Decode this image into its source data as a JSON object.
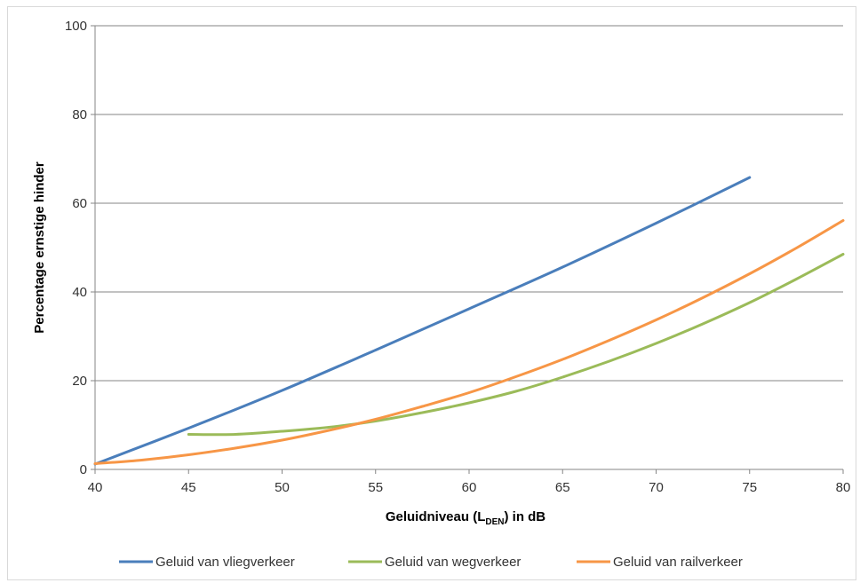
{
  "chart_data": {
    "type": "line",
    "title": "",
    "xlabel": {
      "main": "Geluidniveau  (L",
      "sub": "DEN",
      "tail": ") in dB"
    },
    "ylabel": "Percentage ernstige hinder",
    "xlim": [
      40,
      80
    ],
    "ylim": [
      0,
      100
    ],
    "xticks": [
      40,
      45,
      50,
      55,
      60,
      65,
      70,
      75,
      80
    ],
    "yticks": [
      0,
      20,
      40,
      60,
      80,
      100
    ],
    "grid": "horizontal",
    "legend_position": "bottom",
    "series": [
      {
        "name": "Geluid van vliegverkeer",
        "color": "#4a7ebb",
        "x": [
          40,
          45,
          50,
          55,
          60,
          65,
          70,
          75
        ],
        "y": [
          1.2,
          9.3,
          17.8,
          26.9,
          36.2,
          45.6,
          55.5,
          65.8
        ]
      },
      {
        "name": "Geluid van wegverkeer",
        "color": "#9bbb59",
        "x": [
          45,
          47.5,
          50,
          52.5,
          55,
          57.5,
          60,
          62.5,
          65,
          67.5,
          70,
          72.5,
          75,
          77.5,
          80
        ],
        "y": [
          7.9,
          7.9,
          8.6,
          9.5,
          10.9,
          12.8,
          15.0,
          17.6,
          20.8,
          24.4,
          28.4,
          32.8,
          37.6,
          42.9,
          48.5
        ]
      },
      {
        "name": "Geluid van railverkeer",
        "color": "#f79646",
        "x": [
          40,
          42.5,
          45,
          47.5,
          50,
          52.5,
          55,
          57.5,
          60,
          62.5,
          65,
          67.5,
          70,
          72.5,
          75,
          77.5,
          80
        ],
        "y": [
          1.3,
          2.1,
          3.3,
          4.8,
          6.6,
          8.8,
          11.3,
          14.2,
          17.3,
          20.9,
          24.8,
          29.1,
          33.7,
          38.7,
          44.1,
          49.9,
          56.1
        ]
      }
    ]
  }
}
